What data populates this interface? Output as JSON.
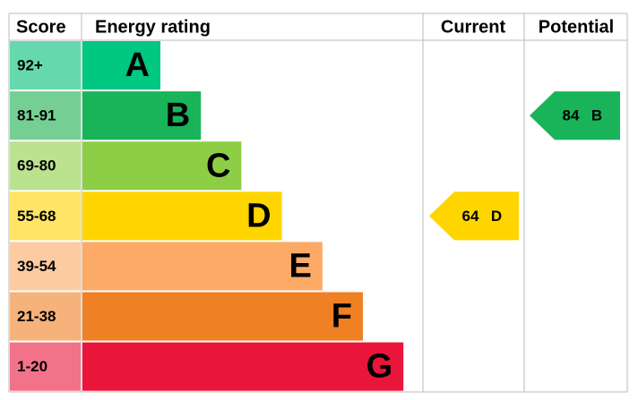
{
  "header": {
    "score": "Score",
    "rating": "Energy rating",
    "current": "Current",
    "potential": "Potential"
  },
  "bands": [
    {
      "score": "92+",
      "rating": "A",
      "color": "#00c781",
      "light": "#66d8ad"
    },
    {
      "score": "81-91",
      "rating": "B",
      "color": "#19b459",
      "light": "#75cf94"
    },
    {
      "score": "69-80",
      "rating": "C",
      "color": "#8dce46",
      "light": "#bbe28f"
    },
    {
      "score": "55-68",
      "rating": "D",
      "color": "#ffd500",
      "light": "#ffe466"
    },
    {
      "score": "39-54",
      "rating": "E",
      "color": "#fcaa65",
      "light": "#fdcba2"
    },
    {
      "score": "21-38",
      "rating": "F",
      "color": "#ef8023",
      "light": "#f5b27a"
    },
    {
      "score": "1-20",
      "rating": "G",
      "color": "#e9153b",
      "light": "#f27389"
    }
  ],
  "current": {
    "score": 64,
    "rating": "D",
    "color": "#ffd500"
  },
  "potential": {
    "score": 84,
    "rating": "B",
    "color": "#19b459"
  }
}
